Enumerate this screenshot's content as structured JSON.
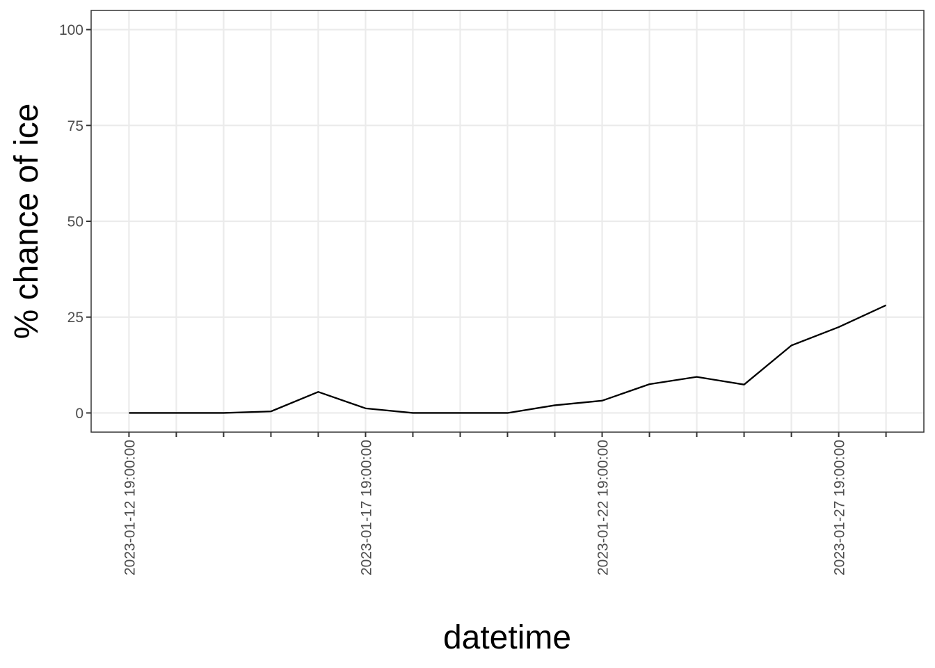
{
  "chart_data": {
    "type": "line",
    "xlabel": "datetime",
    "ylabel": "% chance of ice",
    "x": [
      "2023-01-12 19:00:00",
      "2023-01-13 19:00:00",
      "2023-01-14 19:00:00",
      "2023-01-15 19:00:00",
      "2023-01-16 19:00:00",
      "2023-01-17 19:00:00",
      "2023-01-18 19:00:00",
      "2023-01-19 19:00:00",
      "2023-01-20 19:00:00",
      "2023-01-21 19:00:00",
      "2023-01-22 19:00:00",
      "2023-01-23 19:00:00",
      "2023-01-24 19:00:00",
      "2023-01-25 19:00:00",
      "2023-01-26 19:00:00",
      "2023-01-27 19:00:00",
      "2023-01-28 19:00:00"
    ],
    "values": [
      0,
      0,
      0,
      0.4,
      5.5,
      1.2,
      0,
      0,
      0,
      2,
      3.2,
      7.5,
      9.4,
      7.4,
      17.6,
      22.4,
      28.1
    ],
    "xticks": [
      "2023-01-12 19:00:00",
      "2023-01-17 19:00:00",
      "2023-01-22 19:00:00",
      "2023-01-27 19:00:00"
    ],
    "xtick_marks": [
      "2023-01-12 19:00:00",
      "2023-01-13 19:00:00",
      "2023-01-14 19:00:00",
      "2023-01-15 19:00:00",
      "2023-01-16 19:00:00",
      "2023-01-17 19:00:00",
      "2023-01-18 19:00:00",
      "2023-01-19 19:00:00",
      "2023-01-20 19:00:00",
      "2023-01-21 19:00:00",
      "2023-01-22 19:00:00",
      "2023-01-23 19:00:00",
      "2023-01-24 19:00:00",
      "2023-01-25 19:00:00",
      "2023-01-26 19:00:00",
      "2023-01-27 19:00:00",
      "2023-01-28 19:00:00"
    ],
    "yticks": [
      0,
      25,
      50,
      75,
      100
    ],
    "ytick_labels": [
      "0",
      "25",
      "50",
      "75",
      "100"
    ],
    "ylim": [
      -5,
      105
    ],
    "grid": true,
    "line_color": "#000000"
  }
}
